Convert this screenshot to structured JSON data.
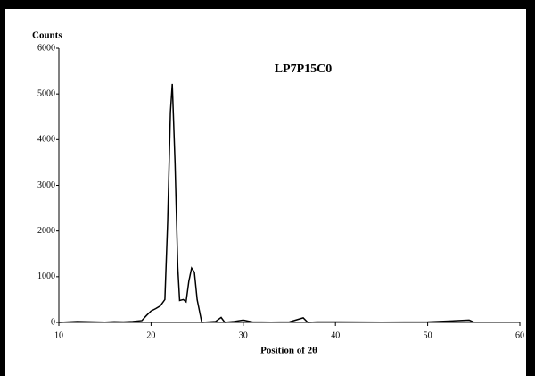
{
  "chart_data": {
    "type": "line",
    "title": "LP7P15C0",
    "y_label": "Counts",
    "x_label": "Position of 2θ",
    "x": [
      10,
      11,
      12,
      13,
      14,
      15,
      16,
      17,
      18,
      19,
      19.5,
      20,
      20.5,
      21,
      21.5,
      21.8,
      22.1,
      22.3,
      22.6,
      22.9,
      23.1,
      23.5,
      23.8,
      24.1,
      24.4,
      24.7,
      25.0,
      25.5,
      27,
      27.6,
      28,
      29,
      30,
      30.5,
      31,
      33,
      35,
      36.5,
      37,
      38,
      40,
      45,
      50,
      54.5,
      55,
      60
    ],
    "values": [
      0,
      10,
      20,
      15,
      10,
      5,
      15,
      10,
      20,
      40,
      150,
      250,
      300,
      360,
      500,
      2200,
      4600,
      5220,
      3500,
      1200,
      480,
      500,
      450,
      900,
      1190,
      1100,
      500,
      0,
      20,
      110,
      0,
      20,
      50,
      30,
      10,
      5,
      10,
      100,
      0,
      10,
      10,
      5,
      10,
      50,
      5,
      5
    ],
    "color": "#000000",
    "xlim": [
      10,
      60
    ],
    "xticks": [
      10,
      20,
      30,
      40,
      50,
      60
    ],
    "ylim": [
      0,
      6000
    ],
    "yticks": [
      0,
      1000,
      2000,
      3000,
      4000,
      5000,
      6000
    ],
    "grid": false
  }
}
